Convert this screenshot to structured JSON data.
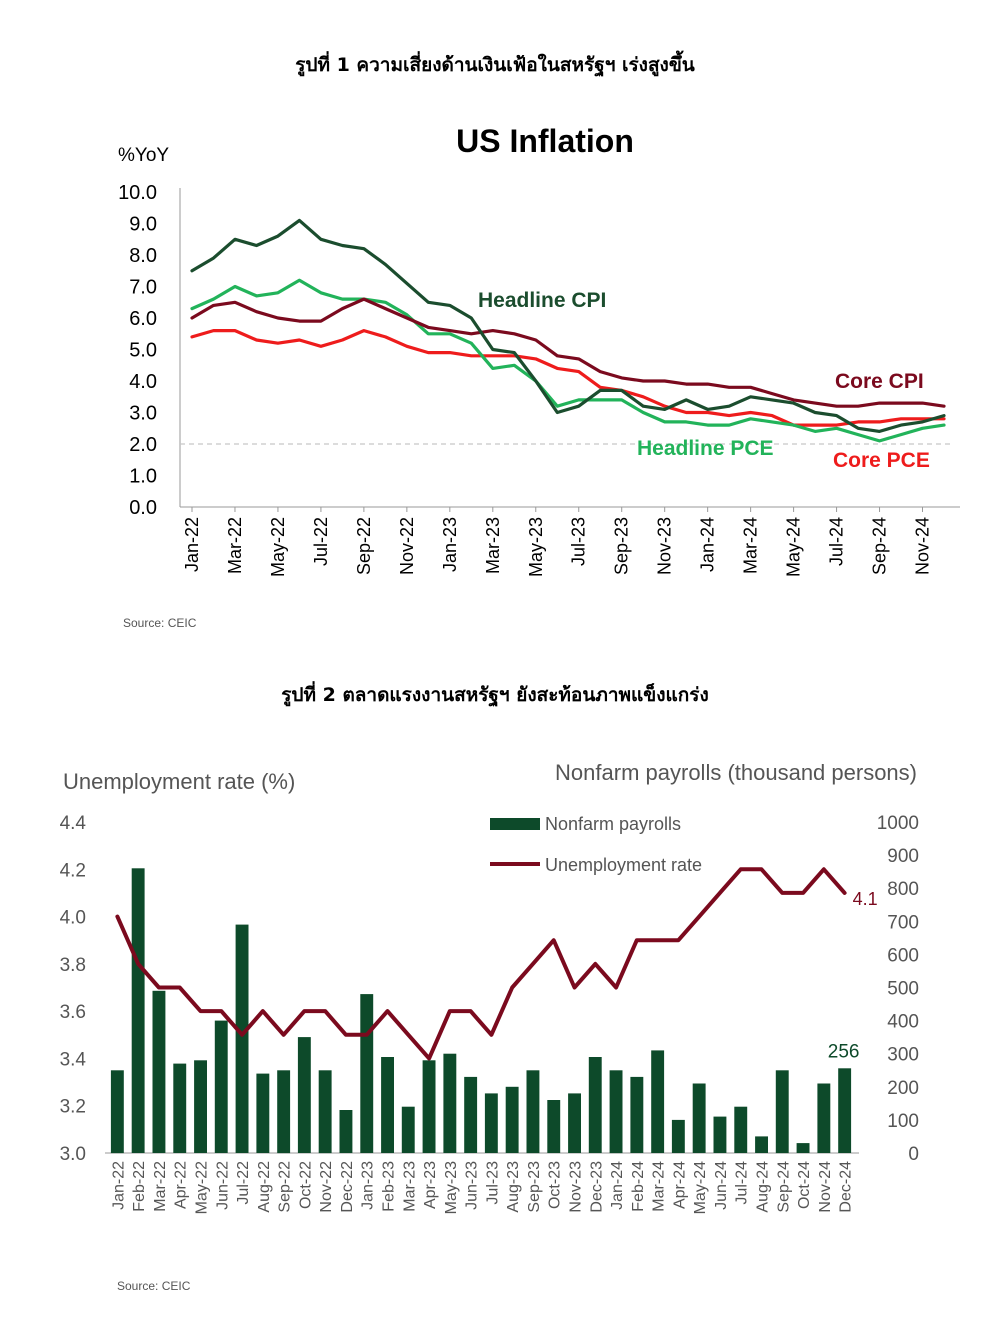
{
  "figure1": {
    "caption": "รูปที่ 1 ความเสี่ยงด้านเงินเฟ้อในสหรัฐฯ เร่งสูงขึ้น",
    "source": "Source: CEIC"
  },
  "figure2": {
    "caption": "รูปที่ 2 ตลาดแรงงานสหรัฐฯ ยังสะท้อนภาพแข็งแกร่ง",
    "source": "Source: CEIC"
  },
  "chart_data": [
    {
      "type": "line",
      "title": "US Inflation",
      "ylabel": "%YoY",
      "ylim": [
        0,
        10
      ],
      "yticks": [
        "10.0",
        "9.0",
        "8.0",
        "7.0",
        "6.0",
        "5.0",
        "4.0",
        "3.0",
        "2.0",
        "1.0",
        "0.0"
      ],
      "x": [
        "Jan-22",
        "Feb-22",
        "Mar-22",
        "Apr-22",
        "May-22",
        "Jun-22",
        "Jul-22",
        "Aug-22",
        "Sep-22",
        "Oct-22",
        "Nov-22",
        "Dec-22",
        "Jan-23",
        "Feb-23",
        "Mar-23",
        "Apr-23",
        "May-23",
        "Jun-23",
        "Jul-23",
        "Aug-23",
        "Sep-23",
        "Oct-23",
        "Nov-23",
        "Dec-23",
        "Jan-24",
        "Feb-24",
        "Mar-24",
        "Apr-24",
        "May-24",
        "Jun-24",
        "Jul-24",
        "Aug-24",
        "Sep-24",
        "Oct-24",
        "Nov-24",
        "Dec-24"
      ],
      "xticks": [
        "Jan-22",
        "Mar-22",
        "May-22",
        "Jul-22",
        "Sep-22",
        "Nov-22",
        "Jan-23",
        "Mar-23",
        "May-23",
        "Jul-23",
        "Sep-23",
        "Nov-23",
        "Jan-24",
        "Mar-24",
        "May-24",
        "Jul-24",
        "Sep-24",
        "Nov-24"
      ],
      "reference_line": 2.0,
      "grid": false,
      "series": [
        {
          "name": "Headline CPI",
          "color": "#1b4d2e",
          "values": [
            7.5,
            7.9,
            8.5,
            8.3,
            8.6,
            9.1,
            8.5,
            8.3,
            8.2,
            7.7,
            7.1,
            6.5,
            6.4,
            6.0,
            5.0,
            4.9,
            4.0,
            3.0,
            3.2,
            3.7,
            3.7,
            3.2,
            3.1,
            3.4,
            3.1,
            3.2,
            3.5,
            3.4,
            3.3,
            3.0,
            2.9,
            2.5,
            2.4,
            2.6,
            2.7,
            2.9
          ]
        },
        {
          "name": "Core CPI",
          "color": "#7b0a1e",
          "values": [
            6.0,
            6.4,
            6.5,
            6.2,
            6.0,
            5.9,
            5.9,
            6.3,
            6.6,
            6.3,
            6.0,
            5.7,
            5.6,
            5.5,
            5.6,
            5.5,
            5.3,
            4.8,
            4.7,
            4.3,
            4.1,
            4.0,
            4.0,
            3.9,
            3.9,
            3.8,
            3.8,
            3.6,
            3.4,
            3.3,
            3.2,
            3.2,
            3.3,
            3.3,
            3.3,
            3.2
          ]
        },
        {
          "name": "Headline PCE",
          "color": "#22b35a",
          "values": [
            6.3,
            6.6,
            7.0,
            6.7,
            6.8,
            7.2,
            6.8,
            6.6,
            6.6,
            6.5,
            6.1,
            5.5,
            5.5,
            5.2,
            4.4,
            4.5,
            4.0,
            3.2,
            3.4,
            3.4,
            3.4,
            3.0,
            2.7,
            2.7,
            2.6,
            2.6,
            2.8,
            2.7,
            2.6,
            2.4,
            2.5,
            2.3,
            2.1,
            2.3,
            2.5,
            2.6
          ]
        },
        {
          "name": "Core PCE",
          "color": "#ee1c1c",
          "values": [
            5.4,
            5.6,
            5.6,
            5.3,
            5.2,
            5.3,
            5.1,
            5.3,
            5.6,
            5.4,
            5.1,
            4.9,
            4.9,
            4.8,
            4.8,
            4.8,
            4.7,
            4.4,
            4.3,
            3.8,
            3.7,
            3.5,
            3.2,
            3.0,
            3.0,
            2.9,
            3.0,
            2.9,
            2.6,
            2.6,
            2.6,
            2.7,
            2.7,
            2.8,
            2.8,
            2.8
          ]
        }
      ]
    },
    {
      "type": "bar",
      "title_left": "Unemployment rate (%)",
      "title_right": "Nonfarm payrolls (thousand persons)",
      "categories": [
        "Jan-22",
        "Feb-22",
        "Mar-22",
        "Apr-22",
        "May-22",
        "Jun-22",
        "Jul-22",
        "Aug-22",
        "Sep-22",
        "Oct-22",
        "Nov-22",
        "Dec-22",
        "Jan-23",
        "Feb-23",
        "Mar-23",
        "Apr-23",
        "May-23",
        "Jun-23",
        "Jul-23",
        "Aug-23",
        "Sep-23",
        "Oct-23",
        "Nov-23",
        "Dec-23",
        "Jan-24",
        "Feb-24",
        "Mar-24",
        "Apr-24",
        "May-24",
        "Jun-24",
        "Jul-24",
        "Aug-24",
        "Sep-24",
        "Oct-24",
        "Nov-24",
        "Dec-24"
      ],
      "y_left_ticks": [
        "4.4",
        "4.2",
        "4.0",
        "3.8",
        "3.6",
        "3.4",
        "3.2",
        "3.0"
      ],
      "y_left_lim": [
        3.0,
        4.4
      ],
      "y_right_ticks": [
        "1000",
        "900",
        "800",
        "700",
        "600",
        "500",
        "400",
        "300",
        "200",
        "100",
        "0"
      ],
      "y_right_lim": [
        0,
        1000
      ],
      "legend_position": "top-right",
      "series": [
        {
          "name": "Nonfarm payrolls",
          "axis": "right",
          "kind": "bar",
          "color": "#0d4a2a",
          "values": [
            250,
            860,
            490,
            270,
            280,
            400,
            690,
            240,
            250,
            350,
            250,
            130,
            480,
            290,
            140,
            280,
            300,
            230,
            180,
            200,
            250,
            160,
            180,
            290,
            250,
            230,
            310,
            100,
            210,
            110,
            140,
            50,
            250,
            30,
            210,
            256
          ]
        },
        {
          "name": "Unemployment rate",
          "axis": "left",
          "kind": "line",
          "color": "#7b0a1e",
          "values": [
            4.0,
            3.8,
            3.7,
            3.7,
            3.6,
            3.6,
            3.5,
            3.6,
            3.5,
            3.6,
            3.6,
            3.5,
            3.5,
            3.6,
            3.5,
            3.4,
            3.6,
            3.6,
            3.5,
            3.7,
            3.8,
            3.9,
            3.7,
            3.8,
            3.7,
            3.9,
            3.9,
            3.9,
            4.0,
            4.1,
            4.2,
            4.2,
            4.1,
            4.1,
            4.2,
            4.1
          ]
        }
      ],
      "annotations": [
        {
          "text": "256",
          "target": "Nonfarm payrolls Dec-24"
        },
        {
          "text": "4.1",
          "target": "Unemployment rate Dec-24"
        }
      ]
    }
  ]
}
